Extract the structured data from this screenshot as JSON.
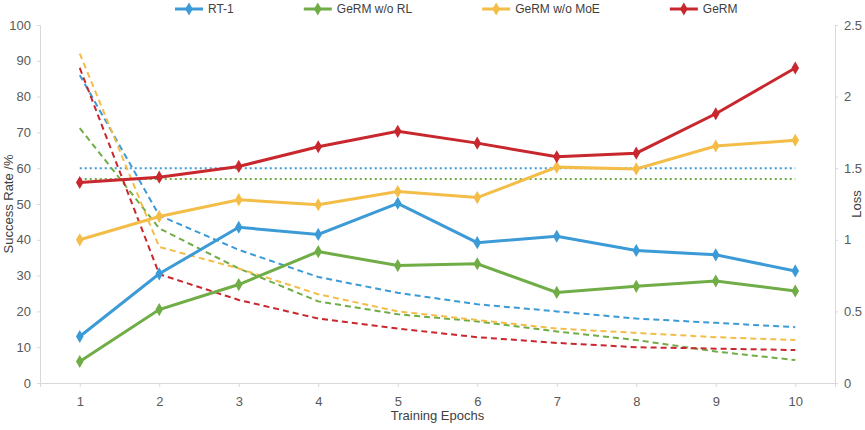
{
  "chart_data": {
    "type": "line",
    "x_label": "Training Epochs",
    "y_label": "Success Rate /%",
    "y2_label": "Loss",
    "x": [
      1,
      2,
      3,
      4,
      5,
      6,
      7,
      8,
      9,
      10
    ],
    "xlim": [
      0.5,
      10.5
    ],
    "xticks": [
      1,
      2,
      3,
      4,
      5,
      6,
      7,
      8,
      9,
      10
    ],
    "ylim": [
      0,
      100
    ],
    "yticks": [
      0,
      10,
      20,
      30,
      40,
      50,
      60,
      70,
      80,
      90,
      100
    ],
    "y2lim": [
      0,
      2.5
    ],
    "y2ticks": [
      0,
      0.5,
      1,
      1.5,
      2,
      2.5
    ],
    "grid": false,
    "legend": "top",
    "series": [
      {
        "name": "RT-1",
        "color": "#3c9bd6",
        "marker": "diamond",
        "line_style": "solid",
        "values": [
          13,
          30.5,
          43.5,
          41.5,
          50.2,
          39.2,
          41,
          37,
          35.8,
          31.3
        ]
      },
      {
        "name": "GeRM w/o RL",
        "color": "#70ad47",
        "marker": "diamond",
        "line_style": "solid",
        "values": [
          6,
          20.5,
          27.5,
          36.7,
          32.8,
          33.3,
          25.3,
          27,
          28.5,
          25.7
        ]
      },
      {
        "name": "GeRM w/o MoE",
        "color": "#f3bd48",
        "marker": "diamond",
        "line_style": "solid",
        "values": [
          40,
          46.5,
          51.2,
          49.8,
          53.5,
          51.8,
          60.3,
          59.8,
          66.2,
          67.8
        ]
      },
      {
        "name": "GeRM",
        "color": "#c8272e",
        "marker": "diamond",
        "line_style": "solid",
        "values": [
          56,
          57.5,
          60.5,
          66,
          70.3,
          67,
          63.2,
          64.2,
          75.2,
          88
        ]
      },
      {
        "color": "#3c9bd6",
        "marker": "none",
        "line_style": "dotted",
        "values": [
          60,
          60,
          60,
          60,
          60,
          60,
          60,
          60,
          60,
          60
        ]
      },
      {
        "color": "#70ad47",
        "marker": "none",
        "line_style": "dotted",
        "values": [
          57,
          57,
          57,
          57,
          57,
          57,
          57,
          57,
          57,
          57
        ]
      },
      {
        "color": "#3c9bd6",
        "marker": "none",
        "line_style": "dashed",
        "axis": "y2",
        "values": [
          2.15,
          1.17,
          0.93,
          0.74,
          0.63,
          0.55,
          0.5,
          0.45,
          0.42,
          0.39
        ]
      },
      {
        "color": "#70ad47",
        "marker": "none",
        "line_style": "dashed",
        "axis": "y2",
        "values": [
          1.78,
          1.08,
          0.8,
          0.57,
          0.48,
          0.43,
          0.36,
          0.3,
          0.22,
          0.16
        ]
      },
      {
        "color": "#f3bd48",
        "marker": "none",
        "line_style": "dashed",
        "axis": "y2",
        "values": [
          2.3,
          0.95,
          0.8,
          0.62,
          0.5,
          0.44,
          0.38,
          0.35,
          0.32,
          0.3
        ]
      },
      {
        "color": "#c8272e",
        "marker": "none",
        "line_style": "dashed",
        "axis": "y2",
        "values": [
          2.2,
          0.76,
          0.58,
          0.45,
          0.38,
          0.32,
          0.28,
          0.25,
          0.24,
          0.23
        ]
      }
    ]
  }
}
